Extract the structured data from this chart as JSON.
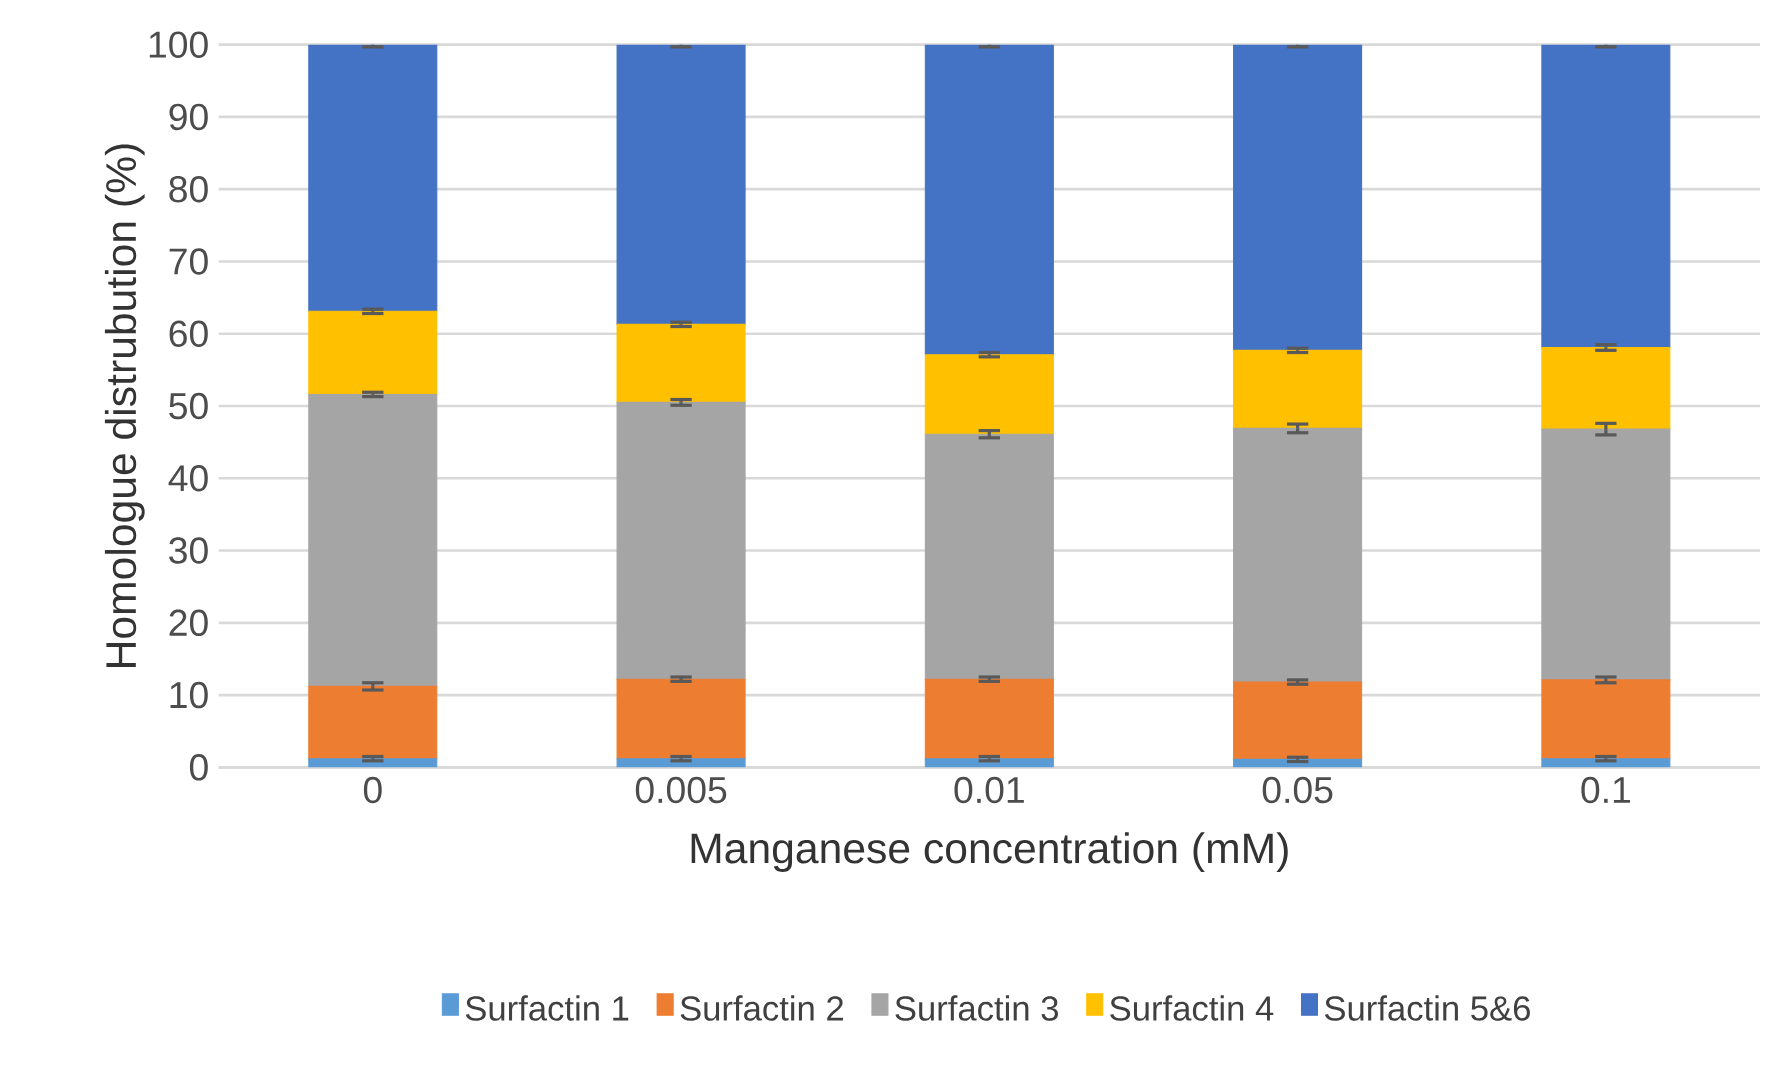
{
  "chart_data": {
    "type": "bar",
    "stacked": true,
    "xlabel": "Manganese concentration (mM)",
    "ylabel": "Homologue distrubution (%)",
    "categories": [
      "0",
      "0.005",
      "0.01",
      "0.05",
      "0.1"
    ],
    "series": [
      {
        "name": "Surfactin 1",
        "color": "#5b9bd5",
        "values": [
          1.2,
          1.2,
          1.2,
          1.1,
          1.2
        ],
        "errors": [
          0.3,
          0.3,
          0.3,
          0.3,
          0.3
        ]
      },
      {
        "name": "Surfactin 2",
        "color": "#ed7d31",
        "values": [
          10.0,
          11.0,
          11.0,
          10.7,
          10.9
        ],
        "errors": [
          0.5,
          0.3,
          0.3,
          0.3,
          0.4
        ]
      },
      {
        "name": "Surfactin 3",
        "color": "#a5a5a5",
        "values": [
          40.4,
          38.3,
          33.9,
          35.1,
          34.7
        ],
        "errors": [
          0.3,
          0.4,
          0.5,
          0.6,
          0.8
        ]
      },
      {
        "name": "Surfactin 4",
        "color": "#ffc000",
        "values": [
          11.5,
          10.8,
          11.0,
          10.8,
          11.3
        ],
        "errors": [
          0.3,
          0.3,
          0.3,
          0.3,
          0.4
        ]
      },
      {
        "name": "Surfactin 5&6",
        "color": "#4472c4",
        "values": [
          36.9,
          38.7,
          42.9,
          42.3,
          41.9
        ],
        "errors": [
          0.3,
          0.3,
          0.3,
          0.3,
          0.3
        ]
      }
    ],
    "ylim": [
      0,
      100
    ],
    "yticks": [
      0,
      10,
      20,
      30,
      40,
      50,
      60,
      70,
      80,
      90,
      100
    ],
    "grid": "y",
    "legend": "bottom"
  }
}
